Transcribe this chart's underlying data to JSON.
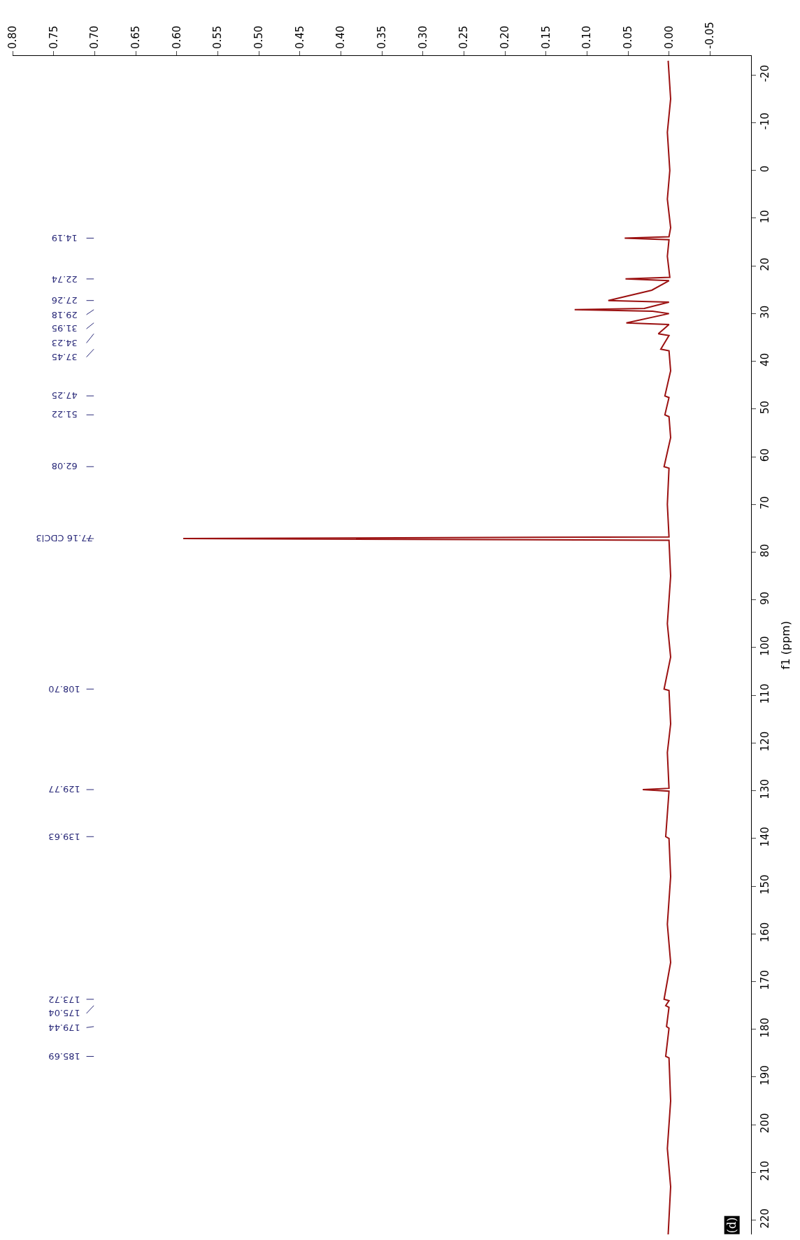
{
  "chart_data": {
    "type": "line",
    "orientation": "horizontal",
    "ylabel": "f1 (ppm)",
    "x": [
      -23,
      -15,
      -8,
      0,
      6,
      12,
      13.9,
      14.19,
      14.5,
      18,
      22.4,
      22.74,
      23.1,
      25.1,
      27.26,
      27.6,
      28.9,
      29.18,
      29.5,
      30,
      31.95,
      32.3,
      34.23,
      34.6,
      37.45,
      37.8,
      42,
      47.25,
      47.6,
      51.22,
      51.6,
      56,
      62.08,
      62.4,
      70,
      76.8,
      77.16,
      77.5,
      85,
      95,
      102,
      108.7,
      109,
      116,
      122,
      129.5,
      129.77,
      130.1,
      139.63,
      140,
      148,
      158,
      166,
      173.72,
      174,
      175.04,
      175.4,
      179.44,
      179.8,
      185.69,
      186,
      195,
      205,
      213,
      223
    ],
    "series": [
      {
        "color": "#9b1010",
        "values": [
          0.001,
          -0.002,
          0.002,
          -0.001,
          0.002,
          -0.002,
          0,
          0.054,
          0,
          0.002,
          -0.001,
          0.053,
          0,
          0.021,
          0.074,
          0,
          0.03,
          0.115,
          0.02,
          0,
          0.052,
          0,
          0.013,
          0,
          0.01,
          0,
          -0.002,
          0.005,
          0,
          0.005,
          0,
          -0.002,
          0.006,
          0,
          0.002,
          0,
          0.592,
          0,
          -0.002,
          0.002,
          -0.002,
          0.006,
          0,
          -0.002,
          0.002,
          0,
          0.032,
          0,
          0.004,
          0,
          -0.002,
          0.002,
          -0.002,
          0.006,
          0,
          0.004,
          0,
          0.003,
          0,
          0.004,
          0,
          -0.002,
          0.002,
          -0.002,
          0.001
        ]
      }
    ],
    "xlim": [
      0.8,
      -0.1
    ],
    "xticks": [
      {
        "value": 0.8,
        "label": "0.80"
      },
      {
        "value": 0.75,
        "label": "0.75"
      },
      {
        "value": 0.7,
        "label": "0.70"
      },
      {
        "value": 0.65,
        "label": "0.65"
      },
      {
        "value": 0.6,
        "label": "0.60"
      },
      {
        "value": 0.55,
        "label": "0.55"
      },
      {
        "value": 0.5,
        "label": "0.50"
      },
      {
        "value": 0.45,
        "label": "0.45"
      },
      {
        "value": 0.4,
        "label": "0.40"
      },
      {
        "value": 0.35,
        "label": "0.35"
      },
      {
        "value": 0.3,
        "label": "0.30"
      },
      {
        "value": 0.25,
        "label": "0.25"
      },
      {
        "value": 0.2,
        "label": "0.20"
      },
      {
        "value": 0.15,
        "label": "0.15"
      },
      {
        "value": 0.1,
        "label": "0.10"
      },
      {
        "value": 0.05,
        "label": "0.05"
      },
      {
        "value": 0,
        "label": "0.00"
      },
      {
        "value": -0.05,
        "label": "-0.05"
      }
    ],
    "ylim": [
      223,
      -24
    ],
    "yticks": [
      -20,
      -10,
      0,
      10,
      20,
      30,
      40,
      50,
      60,
      70,
      80,
      90,
      100,
      110,
      120,
      130,
      140,
      150,
      160,
      170,
      180,
      190,
      200,
      210,
      220
    ],
    "annotations": [
      "14.19",
      "22.74",
      "27.26",
      "29.18",
      "31.95",
      "34.23",
      "37.45",
      "47.25",
      "51.22",
      "62.08",
      "77.16 CDCl3",
      "108.70",
      "129.77",
      "139.63",
      "173.72",
      "175.04",
      "179.44",
      "185.69",
      "(d)"
    ]
  }
}
